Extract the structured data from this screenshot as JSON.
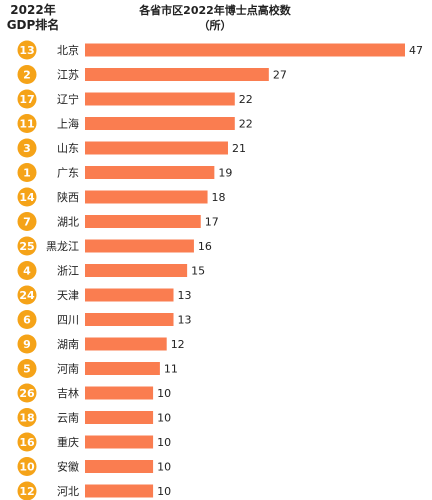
{
  "header": {
    "gdp_rank_line1": "2022年",
    "gdp_rank_line2": "GDP排名"
  },
  "chart_data": {
    "type": "bar",
    "orientation": "horizontal",
    "title_line1": "各省市区2022年博士点高校数",
    "title_line2": "（所）",
    "bar_color": "#FA7D50",
    "badge_color": "#F5A318",
    "value_max": 47,
    "categories": [
      "北京",
      "江苏",
      "辽宁",
      "上海",
      "山东",
      "广东",
      "陕西",
      "湖北",
      "黑龙江",
      "浙江",
      "天津",
      "四川",
      "湖南",
      "河南",
      "吉林",
      "云南",
      "重庆",
      "安徽",
      "河北"
    ],
    "values": [
      47,
      27,
      22,
      22,
      21,
      19,
      18,
      17,
      16,
      15,
      13,
      13,
      12,
      11,
      10,
      10,
      10,
      10,
      10
    ],
    "gdp_rank": [
      13,
      2,
      17,
      11,
      3,
      1,
      14,
      7,
      25,
      4,
      24,
      6,
      9,
      5,
      26,
      18,
      16,
      10,
      12
    ]
  }
}
